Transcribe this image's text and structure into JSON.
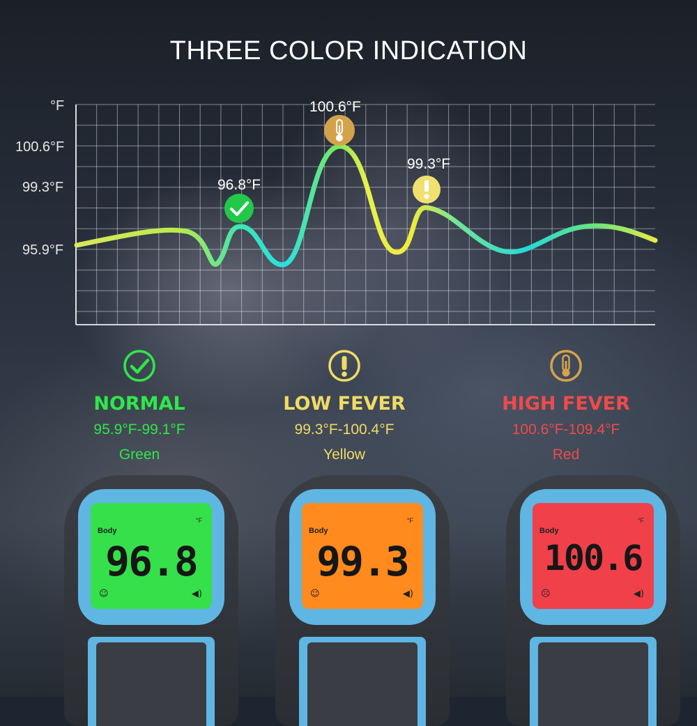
{
  "title": "THREE COLOR INDICATION",
  "chart_data": {
    "type": "line",
    "y_axis_unit": "°F",
    "y_ticks": [
      "100.6°F",
      "99.3°F",
      "95.9°F"
    ],
    "grid": true,
    "annotations": [
      {
        "label": "96.8°F",
        "icon": "check-icon",
        "color": "#21c84a"
      },
      {
        "label": "100.6°F",
        "icon": "thermometer-icon",
        "color": "#d4a24a"
      },
      {
        "label": "99.3°F",
        "icon": "exclamation-icon",
        "color": "#f0e070"
      }
    ]
  },
  "categories": [
    {
      "name": "NORMAL",
      "range": "95.9°F-99.1°F",
      "color_name": "Green",
      "icon": "check-circle-icon",
      "color": "#2ee84a"
    },
    {
      "name": "LOW FEVER",
      "range": "99.3°F-100.4°F",
      "color_name": "Yellow",
      "icon": "exclamation-circle-icon",
      "color": "#f0dc64"
    },
    {
      "name": "HIGH FEVER",
      "range": "100.6°F-109.4°F",
      "color_name": "Red",
      "icon": "thermometer-circle-icon",
      "color": "#f04a4a"
    }
  ],
  "devices": [
    {
      "mode": "Body",
      "unit": "°F",
      "reading": "96.8",
      "lcd_color": "#35e04a"
    },
    {
      "mode": "Body",
      "unit": "°F",
      "reading": "99.3",
      "lcd_color": "#ff8a1e"
    },
    {
      "mode": "Body",
      "unit": "°F",
      "reading": "100.6",
      "lcd_color": "#f0404a"
    }
  ]
}
